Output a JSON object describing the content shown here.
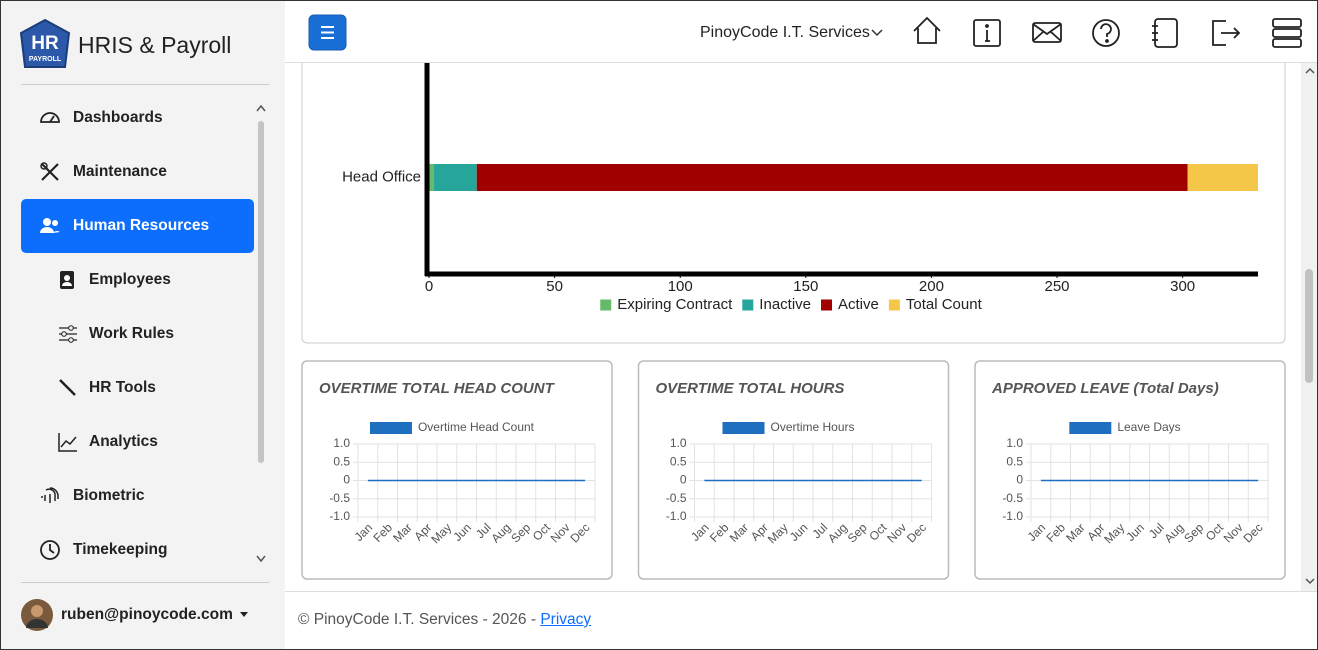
{
  "sidebar": {
    "logo": {
      "text": "HR",
      "subtext": "PAYROLL"
    },
    "title": "HRIS & Payroll",
    "nav": [
      {
        "label": "Dashboards"
      },
      {
        "label": "Maintenance"
      },
      {
        "label": "Human Resources"
      },
      {
        "label": "Employees"
      },
      {
        "label": "Work Rules"
      },
      {
        "label": "HR Tools"
      },
      {
        "label": "Analytics"
      },
      {
        "label": "Biometric"
      },
      {
        "label": "Timekeeping"
      }
    ],
    "user": "ruben@pinoycode.com"
  },
  "header": {
    "company": "PinoyCode I.T. Services"
  },
  "chart_data": [
    {
      "type": "bar",
      "orientation": "horizontal",
      "stacked": true,
      "categories": [
        "Head Office"
      ],
      "series": [
        {
          "name": "Expiring Contract",
          "color": "#66bb6a",
          "values": [
            2
          ]
        },
        {
          "name": "Inactive",
          "color": "#26a69a",
          "values": [
            17
          ]
        },
        {
          "name": "Active",
          "color": "#a00000",
          "values": [
            283
          ]
        },
        {
          "name": "Total Count",
          "color": "#f5c748",
          "values": [
            28
          ]
        }
      ],
      "xlim": [
        0,
        330
      ],
      "xticks": [
        0,
        50,
        100,
        150,
        200,
        250,
        300
      ],
      "legend": "bottom"
    },
    {
      "type": "line",
      "title": "OVERTIME TOTAL HEAD COUNT",
      "categories": [
        "Jan",
        "Feb",
        "Mar",
        "Apr",
        "May",
        "Jun",
        "Jul",
        "Aug",
        "Sep",
        "Oct",
        "Nov",
        "Dec"
      ],
      "series": [
        {
          "name": "Overtime Head Count",
          "color": "#1e6fc0",
          "values": [
            0,
            0,
            0,
            0,
            0,
            0,
            0,
            0,
            0,
            0,
            0,
            0
          ]
        }
      ],
      "ylim": [
        -1,
        1
      ],
      "yticks": [
        {
          "value": 1,
          "label": "1.0"
        },
        0.5,
        0,
        -0.5,
        {
          "value": -1,
          "label": "-1.0"
        }
      ],
      "grid": true,
      "legend": "top"
    },
    {
      "type": "line",
      "title": "OVERTIME TOTAL HOURS",
      "categories": [
        "Jan",
        "Feb",
        "Mar",
        "Apr",
        "May",
        "Jun",
        "Jul",
        "Aug",
        "Sep",
        "Oct",
        "Nov",
        "Dec"
      ],
      "series": [
        {
          "name": "Overtime Hours",
          "color": "#1e6fc0",
          "values": [
            0,
            0,
            0,
            0,
            0,
            0,
            0,
            0,
            0,
            0,
            0,
            0
          ]
        }
      ],
      "ylim": [
        -1,
        1
      ],
      "yticks": [
        {
          "value": 1,
          "label": "1.0"
        },
        0.5,
        0,
        -0.5,
        {
          "value": -1,
          "label": "-1.0"
        }
      ],
      "grid": true,
      "legend": "top"
    },
    {
      "type": "line",
      "title": "APPROVED LEAVE (Total Days)",
      "categories": [
        "Jan",
        "Feb",
        "Mar",
        "Apr",
        "May",
        "Jun",
        "Jul",
        "Aug",
        "Sep",
        "Oct",
        "Nov",
        "Dec"
      ],
      "series": [
        {
          "name": "Leave Days",
          "color": "#1e6fc0",
          "values": [
            0,
            0,
            0,
            0,
            0,
            0,
            0,
            0,
            0,
            0,
            0,
            0
          ]
        }
      ],
      "ylim": [
        -1,
        1
      ],
      "yticks": [
        {
          "value": 1,
          "label": "1.0"
        },
        0.5,
        0,
        -0.5,
        {
          "value": -1,
          "label": "-1.0"
        }
      ],
      "grid": true,
      "legend": "top"
    }
  ],
  "footer": {
    "text": "© PinoyCode I.T. Services - 2026 -",
    "link": "Privacy"
  }
}
